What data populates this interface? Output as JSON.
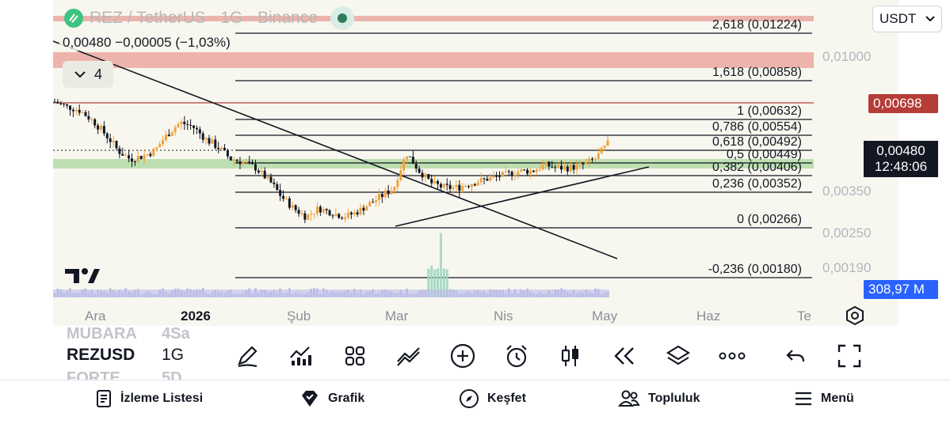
{
  "symbol": {
    "title": "REZ / TetherUS · 1G · Binance",
    "ohlc": "0,00480  −0,00005 (−1,03%)",
    "indicators_count": "4",
    "currency": "USDT"
  },
  "timeframe_bar": {
    "symbol": "REZUSD",
    "timeframe": "1G",
    "ghost_above_symbol": "MUBARA",
    "ghost_above_tf": "4Sa",
    "ghost_below_symbol": "FORTE",
    "ghost_below_tf": "5D"
  },
  "price_labels": {
    "l0": "0,01000",
    "l1": "0,00350",
    "l2": "0,00250",
    "l3": "0,00190"
  },
  "badges": {
    "red": "0,00698",
    "current_price": "0,00480",
    "countdown": "12:48:06",
    "volume": "308,97 M"
  },
  "colors": {
    "chart_bg": "#f8f7ef",
    "up": "#f0a23c",
    "down": "#131722",
    "red_zone": "#e9a29b",
    "green_zone": "#b7dbaa",
    "red_badge": "#b53c37",
    "volume": "#b9bbe8"
  },
  "chart_data": {
    "type": "candlestick",
    "time_axis": [
      "Ara",
      "2026",
      "Şub",
      "Mar",
      "Nis",
      "May",
      "Haz",
      "Te"
    ],
    "fib_levels": [
      {
        "label": "2,618 (0,01224)",
        "value": 0.01224
      },
      {
        "label": "1,618 (0,00858)",
        "value": 0.00858
      },
      {
        "label": "1 (0,00632)",
        "value": 0.00632
      },
      {
        "label": "0,786 (0,00554)",
        "value": 0.00554
      },
      {
        "label": "0,618 (0,00492)",
        "value": 0.00492
      },
      {
        "label": "0,5 (0,00449)",
        "value": 0.00449
      },
      {
        "label": "0,382 (0,00406)",
        "value": 0.00406
      },
      {
        "label": "0,236 (0,00352)",
        "value": 0.00352
      },
      {
        "label": "0 (0,00266)",
        "value": 0.00266
      },
      {
        "label": "-0,236 (0,00180)",
        "value": 0.0018
      }
    ],
    "trend": [
      0.0068,
      0.0065,
      0.0063,
      0.0058,
      0.0052,
      0.0046,
      0.0043,
      0.0044,
      0.0046,
      0.0052,
      0.0057,
      0.0055,
      0.005,
      0.0047,
      0.0043,
      0.0042,
      0.004,
      0.0036,
      0.0032,
      0.0029,
      0.0027,
      0.0029,
      0.0028,
      0.0027,
      0.0028,
      0.003,
      0.0032,
      0.0034,
      0.0045,
      0.0039,
      0.0035,
      0.0034,
      0.0034,
      0.0035,
      0.0036,
      0.0037,
      0.0038,
      0.0039,
      0.0039,
      0.0041,
      0.004,
      0.004,
      0.0041,
      0.0043,
      0.0048
    ]
  }
}
